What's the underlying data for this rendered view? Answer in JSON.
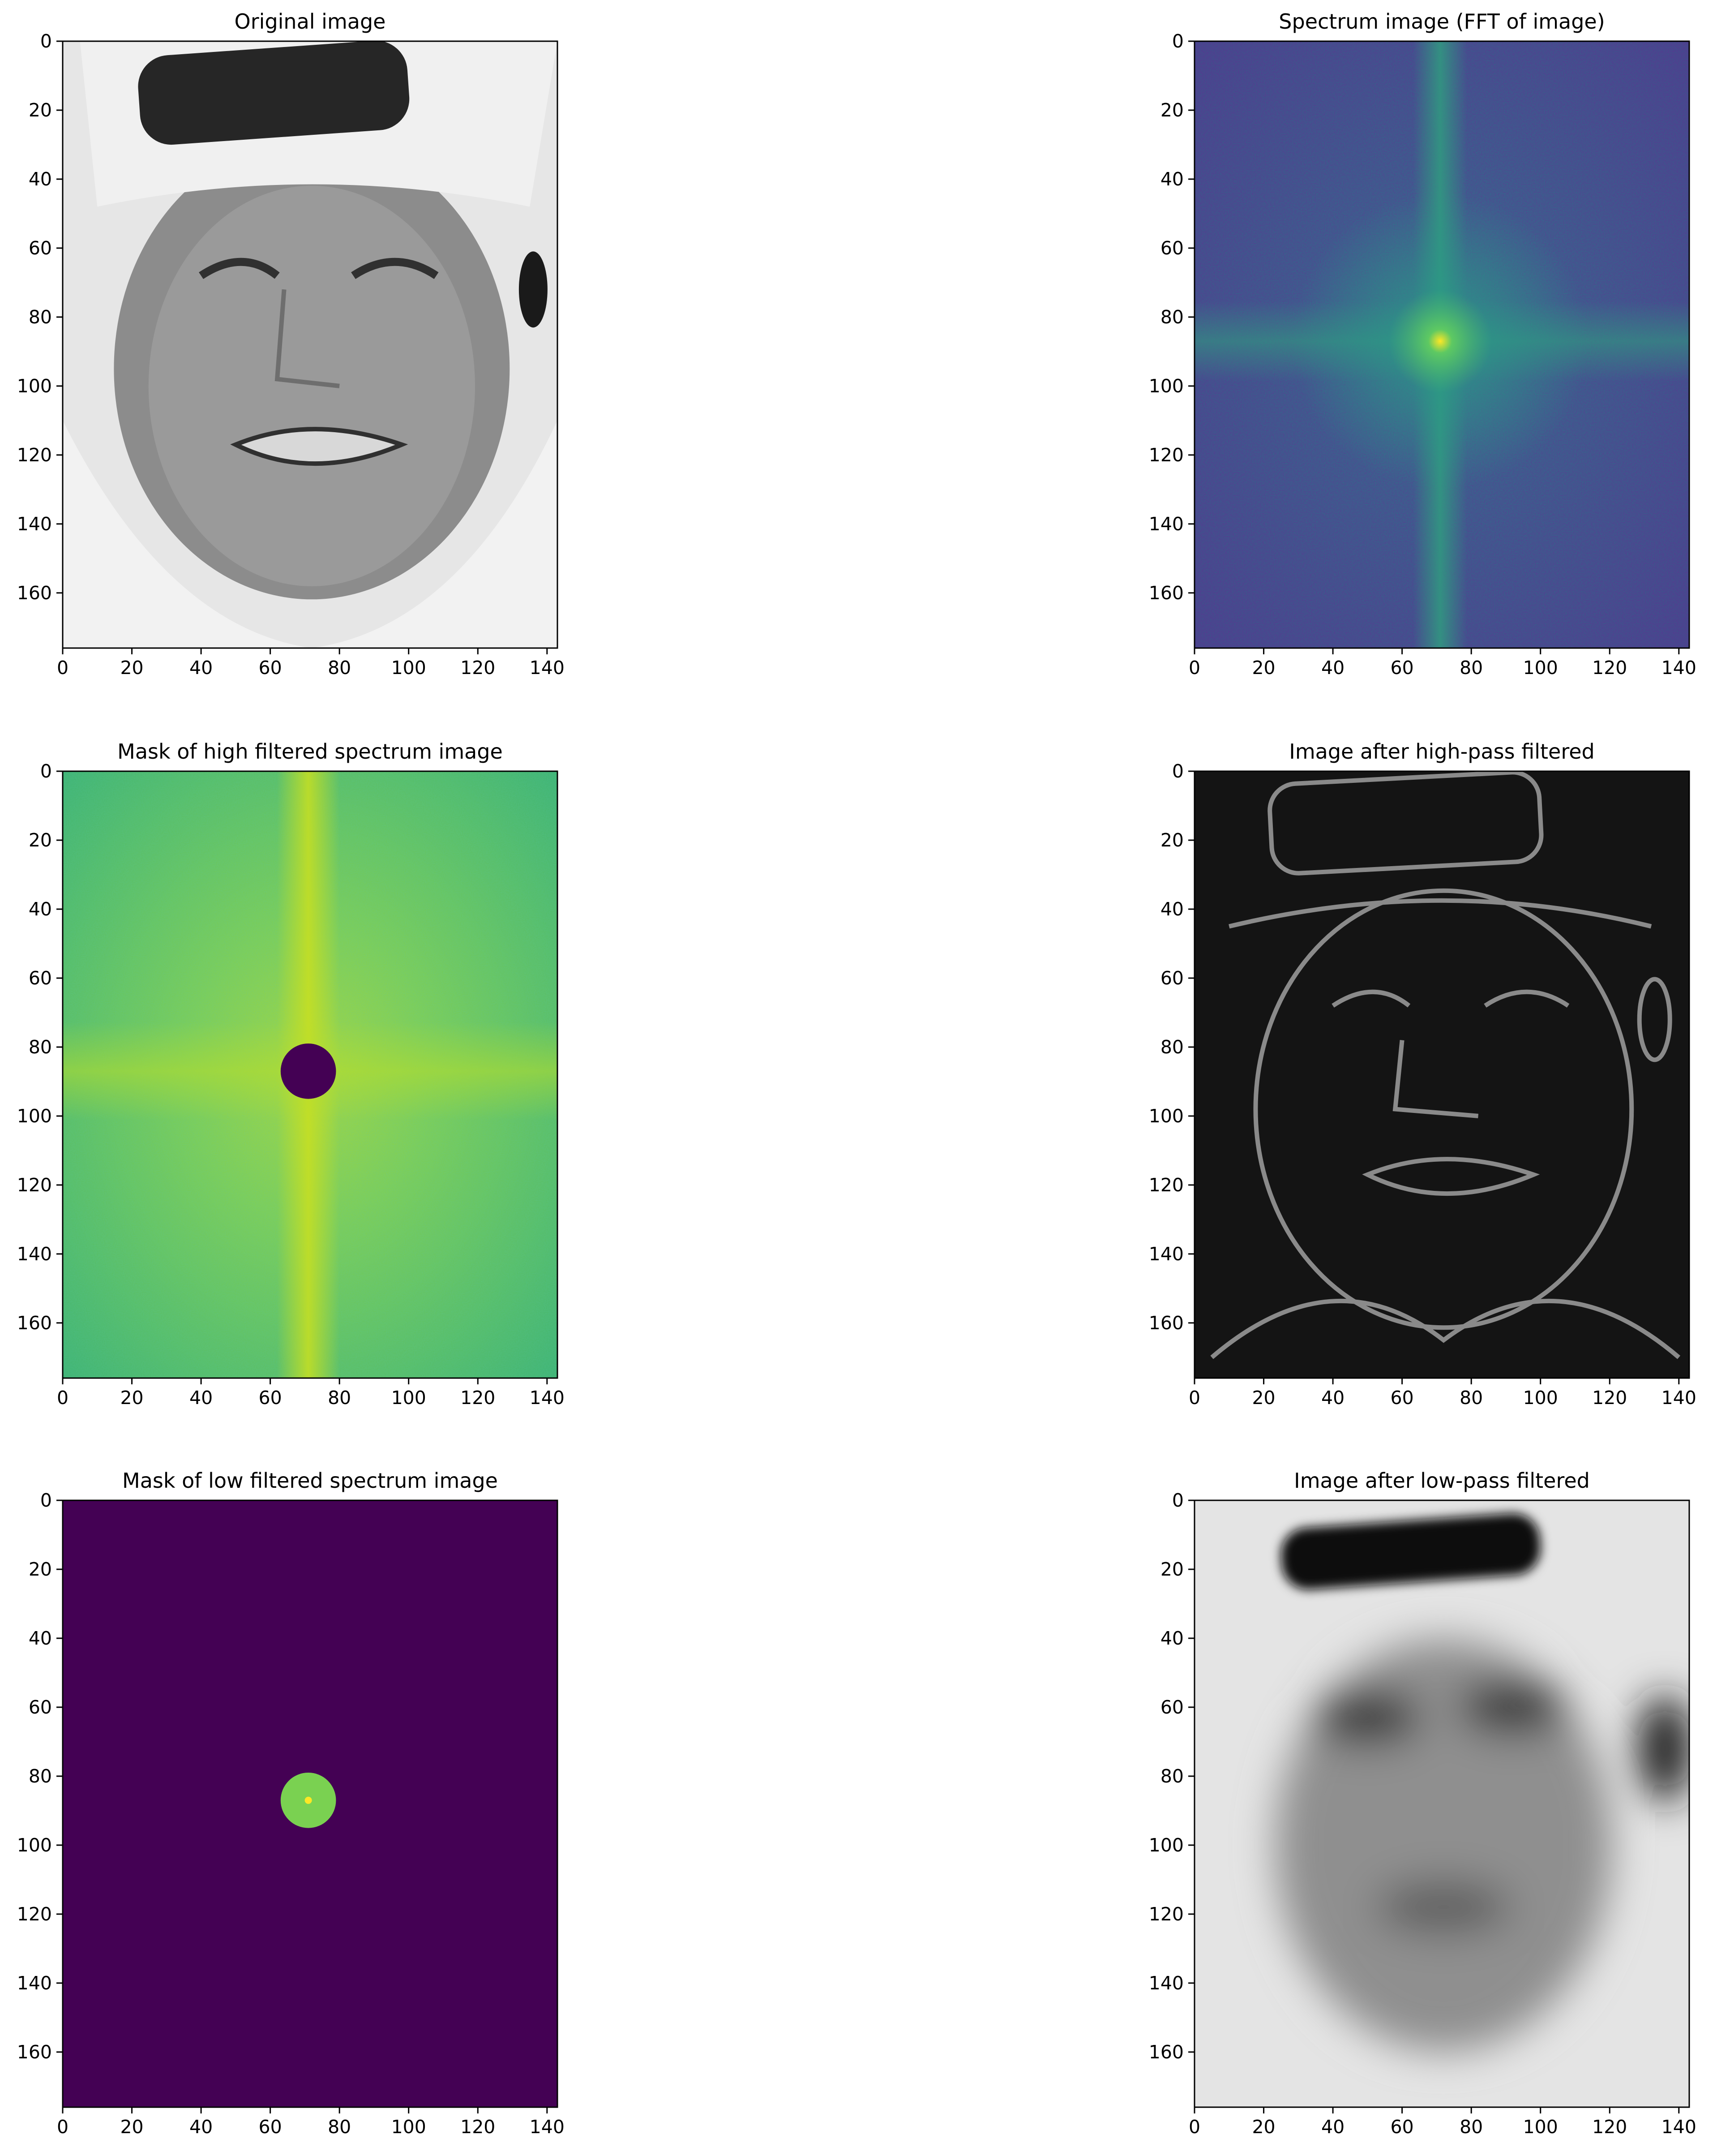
{
  "chart_data": [
    {
      "type": "heatmap",
      "title": "Original image",
      "content": "grayscale face photo",
      "xlim": [
        0,
        143
      ],
      "ylim": [
        176,
        0
      ],
      "xticks": [
        "0",
        "20",
        "40",
        "60",
        "80",
        "100",
        "120",
        "140"
      ],
      "yticks": [
        "0",
        "20",
        "40",
        "60",
        "80",
        "100",
        "120",
        "140",
        "160"
      ],
      "colormap": "gray"
    },
    {
      "type": "heatmap",
      "title": "Spectrum image (FFT of image)",
      "content": "log magnitude spectrum, bright centre at (71, 87)",
      "xlim": [
        0,
        143
      ],
      "ylim": [
        176,
        0
      ],
      "xticks": [
        "0",
        "20",
        "40",
        "60",
        "80",
        "100",
        "120",
        "140"
      ],
      "yticks": [
        "0",
        "20",
        "40",
        "60",
        "80",
        "100",
        "120",
        "140",
        "160"
      ],
      "colormap": "viridis"
    },
    {
      "type": "heatmap",
      "title": "Mask of high filtered spectrum image",
      "content": "spectrum with central disk removed",
      "mask_center": [
        71,
        87
      ],
      "mask_radius": 8,
      "xlim": [
        0,
        143
      ],
      "ylim": [
        176,
        0
      ],
      "xticks": [
        "0",
        "20",
        "40",
        "60",
        "80",
        "100",
        "120",
        "140"
      ],
      "yticks": [
        "0",
        "20",
        "40",
        "60",
        "80",
        "100",
        "120",
        "140",
        "160"
      ],
      "colormap": "viridis"
    },
    {
      "type": "heatmap",
      "title": "Image after high-pass filtered",
      "content": "edge map of the face",
      "xlim": [
        0,
        143
      ],
      "ylim": [
        176,
        0
      ],
      "xticks": [
        "0",
        "20",
        "40",
        "60",
        "80",
        "100",
        "120",
        "140"
      ],
      "yticks": [
        "0",
        "20",
        "40",
        "60",
        "80",
        "100",
        "120",
        "140",
        "160"
      ],
      "colormap": "gray"
    },
    {
      "type": "heatmap",
      "title": "Mask of low filtered spectrum image",
      "content": "only central disk of spectrum kept",
      "mask_center": [
        71,
        87
      ],
      "mask_radius": 8,
      "xlim": [
        0,
        143
      ],
      "ylim": [
        176,
        0
      ],
      "xticks": [
        "0",
        "20",
        "40",
        "60",
        "80",
        "100",
        "120",
        "140"
      ],
      "yticks": [
        "0",
        "20",
        "40",
        "60",
        "80",
        "100",
        "120",
        "140",
        "160"
      ],
      "colormap": "viridis"
    },
    {
      "type": "heatmap",
      "title": "Image after low-pass filtered",
      "content": "blurred face",
      "xlim": [
        0,
        143
      ],
      "ylim": [
        176,
        0
      ],
      "xticks": [
        "0",
        "20",
        "40",
        "60",
        "80",
        "100",
        "120",
        "140"
      ],
      "yticks": [
        "0",
        "20",
        "40",
        "60",
        "80",
        "100",
        "120",
        "140",
        "160"
      ],
      "colormap": "gray"
    }
  ],
  "colors": {
    "viridis_dark": "#440154",
    "viridis_blue": "#3b528b",
    "viridis_teal": "#21918c",
    "viridis_green": "#5ec962",
    "viridis_yellow": "#fde725",
    "axis": "#000000"
  }
}
